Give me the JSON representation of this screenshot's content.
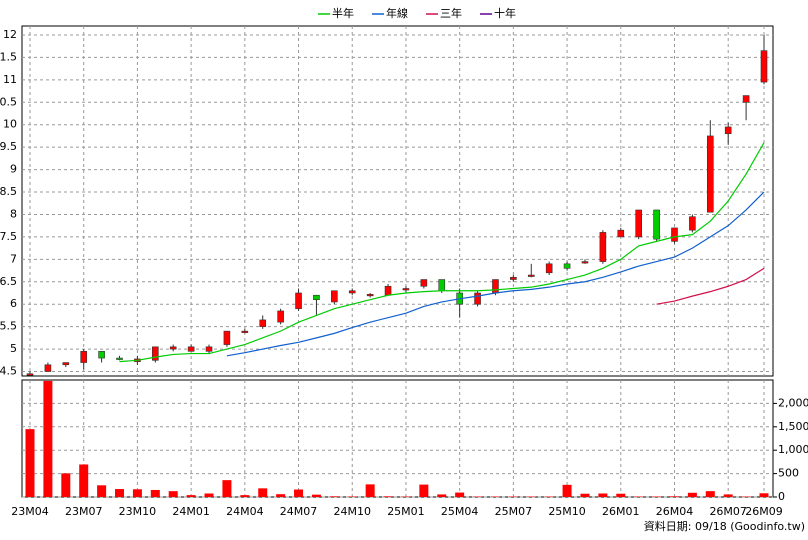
{
  "chart_data": {
    "type": "candlestick",
    "categories": [
      "23M04",
      null,
      null,
      "23M07",
      null,
      null,
      "23M10",
      null,
      null,
      "24M01",
      null,
      null,
      "24M04",
      null,
      null,
      "24M07",
      null,
      null,
      "24M10",
      null,
      null,
      "25M01",
      null,
      null,
      "25M04",
      null,
      null,
      "25M07",
      null,
      null,
      "25M10",
      null,
      null,
      "26M01",
      null,
      null,
      "26M04",
      null,
      null,
      "26M07",
      null,
      "26M09"
    ],
    "open": [
      4.45,
      4.5,
      4.65,
      4.7,
      4.95,
      4.8,
      4.72,
      4.75,
      5.0,
      4.95,
      4.95,
      5.1,
      5.4,
      5.5,
      5.6,
      5.9,
      6.2,
      6.05,
      6.25,
      6.2,
      6.2,
      6.35,
      6.4,
      6.55,
      6.25,
      6.0,
      6.25,
      6.55,
      6.65,
      6.7,
      6.9,
      6.95,
      6.95,
      7.5,
      7.5,
      8.1,
      7.4,
      7.65,
      8.05,
      9.8,
      10.5,
      10.95
    ],
    "high": [
      4.5,
      4.7,
      4.7,
      5.0,
      4.95,
      4.85,
      4.85,
      5.05,
      5.1,
      5.1,
      5.1,
      5.4,
      5.45,
      5.75,
      5.9,
      6.35,
      6.2,
      6.3,
      6.35,
      6.25,
      6.45,
      6.4,
      6.55,
      6.55,
      6.35,
      6.3,
      6.55,
      6.65,
      6.9,
      6.95,
      6.95,
      7.0,
      7.65,
      7.7,
      8.1,
      8.1,
      7.7,
      8.0,
      10.1,
      10.05,
      10.65,
      12.0
    ],
    "low": [
      4.4,
      4.5,
      4.6,
      4.55,
      4.7,
      4.75,
      4.65,
      4.7,
      4.95,
      4.95,
      4.9,
      5.05,
      5.35,
      5.45,
      5.55,
      5.85,
      5.75,
      6.0,
      6.2,
      6.15,
      6.2,
      6.25,
      6.35,
      6.25,
      5.7,
      5.95,
      6.2,
      6.5,
      6.6,
      6.65,
      6.75,
      6.9,
      6.9,
      7.5,
      7.45,
      7.4,
      7.35,
      7.6,
      8.05,
      9.55,
      10.1,
      10.9
    ],
    "close": [
      4.45,
      4.65,
      4.7,
      4.95,
      4.8,
      4.78,
      4.78,
      5.05,
      5.05,
      5.05,
      5.05,
      5.4,
      5.4,
      5.65,
      5.85,
      6.25,
      6.1,
      6.3,
      6.3,
      6.22,
      6.4,
      6.35,
      6.55,
      6.3,
      6.0,
      6.25,
      6.55,
      6.6,
      6.65,
      6.9,
      6.8,
      6.95,
      7.6,
      7.65,
      8.1,
      7.45,
      7.7,
      7.95,
      9.75,
      9.95,
      10.65,
      11.65
    ],
    "up_color": "#ff0000",
    "down_color": "#00cc00",
    "ylim": [
      4.4,
      12.2
    ],
    "yticks": [
      4.5,
      5,
      5.5,
      6,
      6.5,
      7,
      7.5,
      8,
      8.5,
      9,
      9.5,
      10,
      10.5,
      11,
      11.5,
      12
    ],
    "grid": true,
    "series": [
      {
        "name": "半年",
        "color": "#00cc00",
        "values": [
          null,
          null,
          null,
          null,
          null,
          4.72,
          4.75,
          4.82,
          4.88,
          4.9,
          4.9,
          5.0,
          5.1,
          5.25,
          5.4,
          5.6,
          5.75,
          5.9,
          6.0,
          6.1,
          6.2,
          6.25,
          6.28,
          6.3,
          6.3,
          6.3,
          6.32,
          6.35,
          6.38,
          6.45,
          6.55,
          6.65,
          6.8,
          7.0,
          7.3,
          7.4,
          7.5,
          7.55,
          7.85,
          8.3,
          8.9,
          9.6
        ]
      },
      {
        "name": "年線",
        "color": "#1060d0",
        "values": [
          null,
          null,
          null,
          null,
          null,
          null,
          null,
          null,
          null,
          null,
          null,
          4.85,
          4.92,
          5.0,
          5.08,
          5.15,
          5.25,
          5.35,
          5.48,
          5.6,
          5.7,
          5.8,
          5.95,
          6.05,
          6.12,
          6.18,
          6.25,
          6.3,
          6.33,
          6.38,
          6.45,
          6.5,
          6.6,
          6.72,
          6.85,
          6.95,
          7.05,
          7.25,
          7.5,
          7.75,
          8.1,
          8.5
        ]
      },
      {
        "name": "三年",
        "color": "#d0104a",
        "values": [
          null,
          null,
          null,
          null,
          null,
          null,
          null,
          null,
          null,
          null,
          null,
          null,
          null,
          null,
          null,
          null,
          null,
          null,
          null,
          null,
          null,
          null,
          null,
          null,
          null,
          null,
          null,
          null,
          null,
          null,
          null,
          null,
          null,
          null,
          null,
          6.0,
          6.07,
          6.18,
          6.28,
          6.4,
          6.55,
          6.8
        ]
      },
      {
        "name": "十年",
        "color": "#600090",
        "values": [
          null,
          null,
          null,
          null,
          null,
          null,
          null,
          null,
          null,
          null,
          null,
          null,
          null,
          null,
          null,
          null,
          null,
          null,
          null,
          null,
          null,
          null,
          null,
          null,
          null,
          null,
          null,
          null,
          null,
          null,
          null,
          null,
          null,
          null,
          null,
          null,
          null,
          null,
          null,
          null,
          null,
          null
        ]
      }
    ],
    "volume": {
      "color": "#ff0000",
      "values": [
        1450,
        2480,
        505,
        695,
        250,
        170,
        165,
        150,
        125,
        40,
        75,
        360,
        40,
        185,
        60,
        160,
        50,
        15,
        10,
        270,
        15,
        10,
        265,
        55,
        95,
        10,
        10,
        10,
        10,
        10,
        260,
        70,
        75,
        70,
        10,
        10,
        15,
        90,
        125,
        55,
        10,
        80
      ],
      "ylim": [
        0,
        2500
      ],
      "yticks": [
        0,
        500,
        {
          "value": 1000,
          "label": "1,000"
        },
        {
          "value": 1500,
          "label": "1,500"
        },
        {
          "value": 2000,
          "label": "2,000"
        }
      ]
    },
    "footer": "資料日期: 09/18  (Goodinfo.tw)"
  }
}
